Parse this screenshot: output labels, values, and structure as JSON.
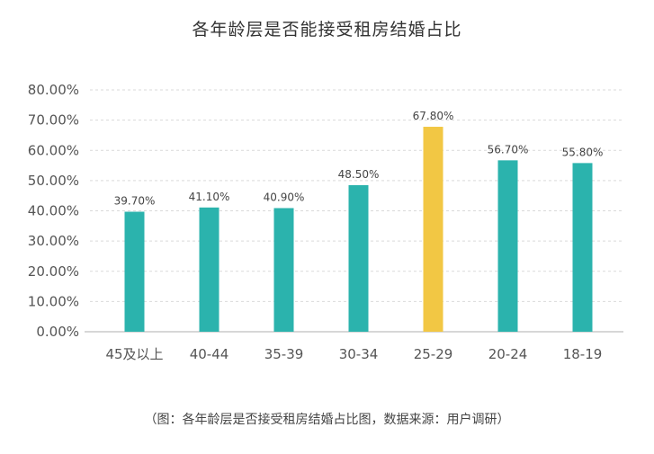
{
  "chart_data": {
    "type": "bar",
    "title": "各年龄层是否能接受租房结婚占比",
    "categories": [
      "45及以上",
      "40-44",
      "35-39",
      "30-34",
      "25-29",
      "20-24",
      "18-19"
    ],
    "values": [
      39.7,
      41.1,
      40.9,
      48.5,
      67.8,
      56.7,
      55.8
    ],
    "value_labels": [
      "39.70%",
      "41.10%",
      "40.90%",
      "48.50%",
      "67.80%",
      "56.70%",
      "55.80%"
    ],
    "y_tick_labels": [
      "0.00%",
      "10.00%",
      "20.00%",
      "30.00%",
      "40.00%",
      "50.00%",
      "60.00%",
      "70.00%",
      "80.00%"
    ],
    "ylim": [
      0,
      80
    ],
    "xlabel": "",
    "ylabel": "",
    "grid": "horizontal dashed",
    "legend": "none",
    "highlight_category": "25-29",
    "colors": {
      "bar": "#2bb3ad",
      "highlight": "#f2c744",
      "grid": "#d9d9d9",
      "axis_text": "#555555"
    }
  },
  "caption": "（图：各年龄层是否接受租房结婚占比图，数据来源：用户调研）"
}
